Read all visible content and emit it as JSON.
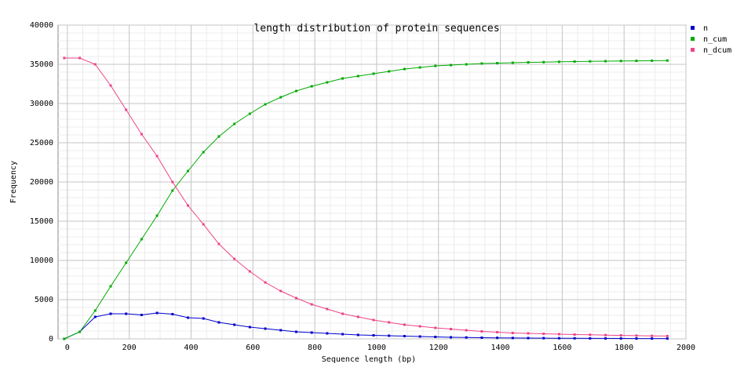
{
  "chart_data": {
    "type": "line",
    "title": "length distribution of protein sequences",
    "xlabel": "Sequence length (bp)",
    "ylabel": "Frequency",
    "xlim": [
      -30,
      2000
    ],
    "ylim": [
      0,
      40000
    ],
    "x_ticks": [
      0,
      200,
      400,
      600,
      800,
      1000,
      1200,
      1400,
      1600,
      1800,
      2000
    ],
    "y_ticks": [
      0,
      5000,
      10000,
      15000,
      20000,
      25000,
      30000,
      35000,
      40000
    ],
    "grid": true,
    "legend_position": "top-right",
    "x": [
      -10,
      40,
      90,
      140,
      190,
      240,
      290,
      340,
      390,
      440,
      490,
      540,
      590,
      640,
      690,
      740,
      790,
      840,
      890,
      940,
      990,
      1040,
      1090,
      1140,
      1190,
      1240,
      1290,
      1340,
      1390,
      1440,
      1490,
      1540,
      1590,
      1640,
      1690,
      1740,
      1790,
      1840,
      1890,
      1940
    ],
    "series": [
      {
        "name": "n",
        "color": "#0000cc",
        "values": [
          0,
          900,
          2800,
          3200,
          3200,
          3050,
          3300,
          3150,
          2700,
          2600,
          2100,
          1800,
          1500,
          1300,
          1100,
          900,
          800,
          700,
          600,
          500,
          450,
          400,
          350,
          300,
          250,
          200,
          180,
          150,
          130,
          110,
          100,
          90,
          80,
          70,
          60,
          55,
          50,
          45,
          40,
          35
        ]
      },
      {
        "name": "n_cum",
        "color": "#00aa00",
        "values": [
          0,
          900,
          3600,
          6700,
          9700,
          12700,
          15700,
          18900,
          21400,
          23800,
          25800,
          27400,
          28700,
          29900,
          30800,
          31600,
          32200,
          32700,
          33200,
          33500,
          33800,
          34100,
          34400,
          34600,
          34800,
          34900,
          35000,
          35100,
          35150,
          35200,
          35250,
          35280,
          35320,
          35350,
          35380,
          35400,
          35420,
          35440,
          35460,
          35480
        ]
      },
      {
        "name": "n_dcum",
        "color": "#ee4488",
        "values": [
          35800,
          35800,
          35000,
          32300,
          29200,
          26100,
          23300,
          20000,
          17000,
          14600,
          12100,
          10200,
          8600,
          7200,
          6100,
          5200,
          4400,
          3800,
          3200,
          2800,
          2400,
          2100,
          1800,
          1600,
          1400,
          1250,
          1100,
          950,
          850,
          750,
          700,
          650,
          600,
          550,
          520,
          480,
          440,
          410,
          380,
          360
        ]
      }
    ]
  }
}
